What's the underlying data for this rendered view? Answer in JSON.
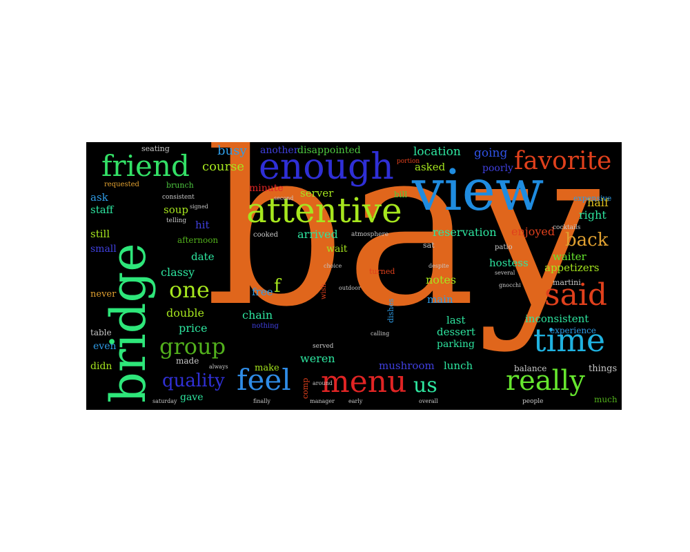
{
  "word_cloud": {
    "background": "#000000",
    "words": [
      {
        "id": "bay",
        "text": "bay",
        "color": "#e0661c",
        "size": 318
      },
      {
        "id": "view",
        "text": "view",
        "color": "#1f8ce0",
        "size": 82
      },
      {
        "id": "bridge",
        "text": "bridge",
        "color": "#2ee67a",
        "size": 70,
        "vertical": true
      },
      {
        "id": "enough",
        "text": "enough",
        "color": "#2f2fd6",
        "size": 52
      },
      {
        "id": "attentive",
        "text": "attentive",
        "color": "#a6e61e",
        "size": 50
      },
      {
        "id": "friend",
        "text": "friend",
        "color": "#33e066",
        "size": 42
      },
      {
        "id": "favorite",
        "text": "favorite",
        "color": "#e0401c",
        "size": 36
      },
      {
        "id": "said",
        "text": "said",
        "color": "#e0401c",
        "size": 44
      },
      {
        "id": "time",
        "text": "time",
        "color": "#1fb2e0",
        "size": 46
      },
      {
        "id": "really",
        "text": "really",
        "color": "#66e62e",
        "size": 40
      },
      {
        "id": "menu",
        "text": "menu",
        "color": "#e02424",
        "size": 44
      },
      {
        "id": "feel",
        "text": "feel",
        "color": "#2f8ce6",
        "size": 42
      },
      {
        "id": "us",
        "text": "us",
        "color": "#2ee6a0",
        "size": 30
      },
      {
        "id": "group",
        "text": "group",
        "color": "#52b01c",
        "size": 32
      },
      {
        "id": "quality",
        "text": "quality",
        "color": "#3030d6",
        "size": 26
      },
      {
        "id": "one",
        "text": "one",
        "color": "#a6e61e",
        "size": 32
      },
      {
        "id": "back",
        "text": "back",
        "color": "#e0a030",
        "size": 26
      },
      {
        "id": "busy",
        "text": "busy",
        "color": "#2f9ce6",
        "size": 18
      },
      {
        "id": "course",
        "text": "course",
        "color": "#a6e61e",
        "size": 18
      },
      {
        "id": "another",
        "text": "another",
        "color": "#4040e0",
        "size": 14
      },
      {
        "id": "disappointed",
        "text": "disappointed",
        "color": "#4ec840",
        "size": 14
      },
      {
        "id": "location",
        "text": "location",
        "color": "#2ee6a0",
        "size": 17
      },
      {
        "id": "going",
        "text": "going",
        "color": "#2f52e6",
        "size": 17
      },
      {
        "id": "asked",
        "text": "asked",
        "color": "#a6e61e",
        "size": 15
      },
      {
        "id": "poorly",
        "text": "poorly",
        "color": "#4040e0",
        "size": 14
      },
      {
        "id": "seating",
        "text": "seating",
        "color": "#c8c8c8",
        "size": 11
      },
      {
        "id": "server",
        "text": "server",
        "color": "#a6e61e",
        "size": 15
      },
      {
        "id": "minute",
        "text": "minute",
        "color": "#e02424",
        "size": 14
      },
      {
        "id": "half",
        "text": "half",
        "color": "#e0c01c",
        "size": 16
      },
      {
        "id": "right",
        "text": "right",
        "color": "#2ee6a0",
        "size": 16
      },
      {
        "id": "ask",
        "text": "ask",
        "color": "#2f9ce6",
        "size": 15
      },
      {
        "id": "staff",
        "text": "staff",
        "color": "#2ee6a0",
        "size": 15
      },
      {
        "id": "soup",
        "text": "soup",
        "color": "#a6e61e",
        "size": 15
      },
      {
        "id": "hit",
        "text": "hit",
        "color": "#4040e0",
        "size": 15
      },
      {
        "id": "still",
        "text": "still",
        "color": "#a6e61e",
        "size": 15
      },
      {
        "id": "arrived",
        "text": "arrived",
        "color": "#2ee6a0",
        "size": 16
      },
      {
        "id": "reservation",
        "text": "reservation",
        "color": "#2ee6a0",
        "size": 16
      },
      {
        "id": "enjoyed",
        "text": "enjoyed",
        "color": "#e0401c",
        "size": 16
      },
      {
        "id": "small",
        "text": "small",
        "color": "#4040e0",
        "size": 14
      },
      {
        "id": "afternoon",
        "text": "afternoon",
        "color": "#52b01c",
        "size": 12
      },
      {
        "id": "wait",
        "text": "wait",
        "color": "#a6e61e",
        "size": 14
      },
      {
        "id": "waiter",
        "text": "waiter",
        "color": "#66e62e",
        "size": 15
      },
      {
        "id": "date",
        "text": "date",
        "color": "#2ee6a0",
        "size": 15
      },
      {
        "id": "hostess",
        "text": "hostess",
        "color": "#2ee6a0",
        "size": 15
      },
      {
        "id": "appetizers",
        "text": "appetizers",
        "color": "#a6e61e",
        "size": 15
      },
      {
        "id": "classy",
        "text": "classy",
        "color": "#2ee6a0",
        "size": 16
      },
      {
        "id": "notes",
        "text": "notes",
        "color": "#a6e61e",
        "size": 16
      },
      {
        "id": "f",
        "text": "f",
        "color": "#a6e61e",
        "size": 26
      },
      {
        "id": "free",
        "text": "free",
        "color": "#2f9ce6",
        "size": 15
      },
      {
        "id": "never",
        "text": "never",
        "color": "#e0a030",
        "size": 13
      },
      {
        "id": "main",
        "text": "main",
        "color": "#2f9ce6",
        "size": 15
      },
      {
        "id": "double",
        "text": "double",
        "color": "#a6e61e",
        "size": 16
      },
      {
        "id": "chain",
        "text": "chain",
        "color": "#2ee6a0",
        "size": 16
      },
      {
        "id": "last",
        "text": "last",
        "color": "#2ee6a0",
        "size": 15
      },
      {
        "id": "inconsistent",
        "text": "inconsistent",
        "color": "#2ee6a0",
        "size": 15
      },
      {
        "id": "price",
        "text": "price",
        "color": "#2ee6a0",
        "size": 16
      },
      {
        "id": "dessert",
        "text": "dessert",
        "color": "#2ee6a0",
        "size": 15
      },
      {
        "id": "table",
        "text": "table",
        "color": "#c8c8c8",
        "size": 12
      },
      {
        "id": "even",
        "text": "even",
        "color": "#2f9ce6",
        "size": 14
      },
      {
        "id": "parking",
        "text": "parking",
        "color": "#2ee6a0",
        "size": 14
      },
      {
        "id": "experience",
        "text": "experience",
        "color": "#2f9ce6",
        "size": 12
      },
      {
        "id": "didn",
        "text": "didn",
        "color": "#a6e61e",
        "size": 14
      },
      {
        "id": "made",
        "text": "made",
        "color": "#c8c8c8",
        "size": 12
      },
      {
        "id": "weren",
        "text": "weren",
        "color": "#2ee6a0",
        "size": 16
      },
      {
        "id": "mushroom",
        "text": "mushroom",
        "color": "#4040e0",
        "size": 15
      },
      {
        "id": "lunch",
        "text": "lunch",
        "color": "#2ee6a0",
        "size": 15
      },
      {
        "id": "balance",
        "text": "balance",
        "color": "#c8c8c8",
        "size": 12
      },
      {
        "id": "things",
        "text": "things",
        "color": "#c8c8c8",
        "size": 13
      },
      {
        "id": "make",
        "text": "make",
        "color": "#a6e61e",
        "size": 13
      },
      {
        "id": "gave",
        "text": "gave",
        "color": "#2ee6a0",
        "size": 14
      },
      {
        "id": "much",
        "text": "much",
        "color": "#52b01c",
        "size": 12
      },
      {
        "id": "brunch",
        "text": "brunch",
        "color": "#4ec840",
        "size": 11
      },
      {
        "id": "requested",
        "text": "requested",
        "color": "#e0a030",
        "size": 10
      },
      {
        "id": "bill",
        "text": "bill",
        "color": "#4ec840",
        "size": 12
      },
      {
        "id": "martini",
        "text": "martini",
        "color": "#c8c8c8",
        "size": 11
      },
      {
        "id": "expensive",
        "text": "expensive",
        "color": "#2f9ce6",
        "size": 11
      },
      {
        "id": "cooked",
        "text": "cooked",
        "color": "#c8c8c8",
        "size": 10
      },
      {
        "id": "comp",
        "text": "comp",
        "color": "#e0401c",
        "size": 11,
        "vertical": true
      },
      {
        "id": "turned",
        "text": "turned",
        "color": "#e0401c",
        "size": 11
      },
      {
        "id": "sat",
        "text": "sat",
        "color": "#c8c8c8",
        "size": 11
      },
      {
        "id": "nothing",
        "text": "nothing",
        "color": "#4040e0",
        "size": 10
      },
      {
        "id": "dishes",
        "text": "dishes",
        "color": "#2f9ce6",
        "size": 11,
        "vertical": true
      },
      {
        "id": "patio",
        "text": "patio",
        "color": "#c8c8c8",
        "size": 10
      },
      {
        "id": "cocktails",
        "text": "cocktails",
        "color": "#c8c8c8",
        "size": 9
      },
      {
        "id": "served",
        "text": "served",
        "color": "#c8c8c8",
        "size": 9
      },
      {
        "id": "wish",
        "text": "wish",
        "color": "#e0401c",
        "size": 10,
        "vertical": true
      },
      {
        "id": "consistent",
        "text": "consistent",
        "color": "#c8c8c8",
        "size": 9
      },
      {
        "id": "telling",
        "text": "telling",
        "color": "#c8c8c8",
        "size": 9
      },
      {
        "id": "atmosphere",
        "text": "atmosphere",
        "color": "#c8c8c8",
        "size": 9
      },
      {
        "id": "portion",
        "text": "portion",
        "color": "#e0401c",
        "size": 9
      },
      {
        "id": "people",
        "text": "people",
        "color": "#c8c8c8",
        "size": 9
      },
      {
        "id": "saturday",
        "text": "saturday",
        "color": "#c8c8c8",
        "size": 8
      },
      {
        "id": "manager",
        "text": "manager",
        "color": "#c8c8c8",
        "size": 8
      },
      {
        "id": "overall",
        "text": "overall",
        "color": "#c8c8c8",
        "size": 8
      },
      {
        "id": "several",
        "text": "several",
        "color": "#c8c8c8",
        "size": 8
      },
      {
        "id": "choice",
        "text": "choice",
        "color": "#c8c8c8",
        "size": 8
      },
      {
        "id": "gnocchi",
        "text": "gnocchi",
        "color": "#c8c8c8",
        "size": 8
      },
      {
        "id": "despite",
        "text": "despite",
        "color": "#c8c8c8",
        "size": 8
      },
      {
        "id": "always",
        "text": "always",
        "color": "#c8c8c8",
        "size": 8
      },
      {
        "id": "outdoor",
        "text": "outdoor",
        "color": "#c8c8c8",
        "size": 8
      },
      {
        "id": "calling",
        "text": "calling",
        "color": "#c8c8c8",
        "size": 8
      },
      {
        "id": "early",
        "text": "early",
        "color": "#c8c8c8",
        "size": 8
      },
      {
        "id": "finally",
        "text": "finally",
        "color": "#c8c8c8",
        "size": 8
      },
      {
        "id": "around",
        "text": "around",
        "color": "#c8c8c8",
        "size": 8
      },
      {
        "id": "second",
        "text": "second",
        "color": "#c8c8c8",
        "size": 8
      },
      {
        "id": "signed",
        "text": "signed",
        "color": "#c8c8c8",
        "size": 8
      }
    ]
  }
}
